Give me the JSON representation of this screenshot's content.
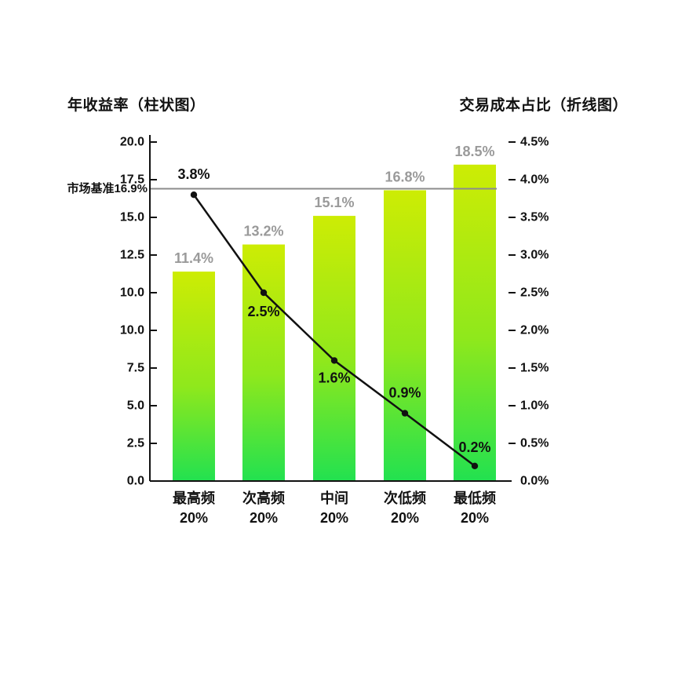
{
  "titles": {
    "left": "年收益率（柱状图）",
    "right": "交易成本占比（折线图）"
  },
  "chart_data": {
    "type": "combo",
    "categories": [
      "最高频",
      "次高频",
      "中间",
      "次低频",
      "最低频"
    ],
    "category_sublabel": "20%",
    "series": [
      {
        "name": "年收益率（柱状图）",
        "type": "bar",
        "axis": "left",
        "values": [
          11.4,
          13.2,
          15.1,
          16.8,
          18.5
        ],
        "labels": [
          "11.4%",
          "13.2%",
          "15.1%",
          "16.8%",
          "18.5%"
        ]
      },
      {
        "name": "交易成本占比（折线图）",
        "type": "line",
        "axis": "right",
        "values": [
          3.8,
          2.5,
          1.6,
          0.9,
          0.2
        ],
        "labels": [
          "3.8%",
          "2.5%",
          "1.6%",
          "0.9%",
          "0.2%"
        ]
      }
    ],
    "left_axis": {
      "tick_labels": [
        "20.0",
        "17.5",
        "15.0",
        "12.5",
        "10.0",
        "10.0",
        "7.5",
        "5.0",
        "2.5",
        "0.0"
      ],
      "range": [
        0,
        20
      ]
    },
    "right_axis": {
      "tick_labels": [
        "4.5%",
        "4.0%",
        "3.5%",
        "3.0%",
        "2.5%",
        "2.0%",
        "1.5%",
        "1.0%",
        "0.5%",
        "0.0%"
      ],
      "range": [
        0,
        4.5
      ]
    },
    "benchmark": {
      "label": "市场基准16.9%",
      "value": 16.9
    },
    "legend_position": "none",
    "grid": false
  },
  "colors": {
    "bar_gradient_top": "#cdec04",
    "bar_gradient_mid": "#8fe81c",
    "bar_gradient_bottom": "#22e150",
    "line": "#111111",
    "benchmark_line": "#8c8c8c",
    "bar_value_label": "#9a9a9a",
    "text": "#111111",
    "axis": "#111111"
  }
}
